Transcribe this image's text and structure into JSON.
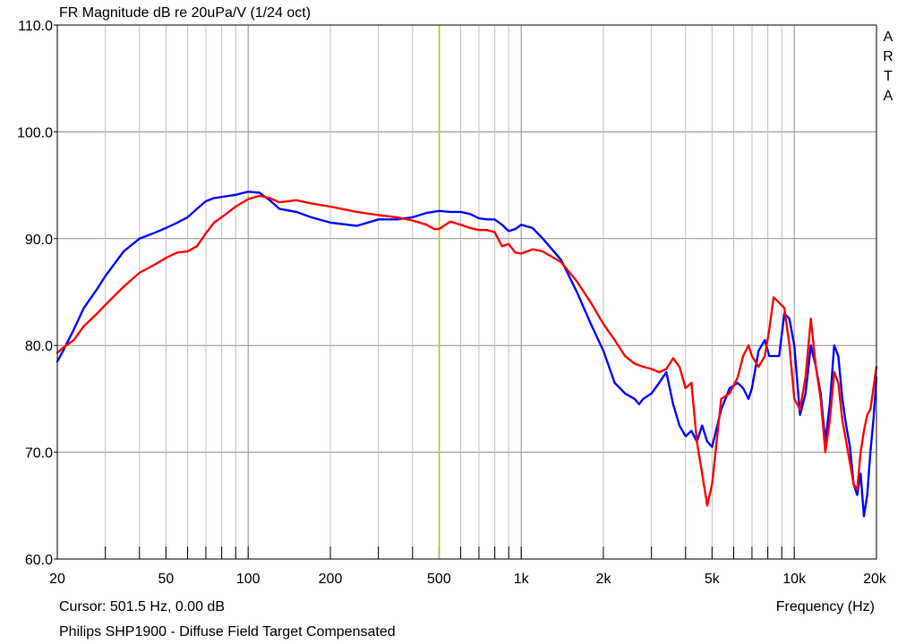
{
  "chart_data": {
    "type": "line",
    "title": "FR Magnitude dB re 20uPa/V (1/24 oct)",
    "xlabel": "Frequency (Hz)",
    "ylabel": "",
    "xscale": "log",
    "xlim": [
      20,
      20000
    ],
    "ylim": [
      60,
      110
    ],
    "grid": true,
    "y_ticks": [
      {
        "value": 60,
        "label": "60.0"
      },
      {
        "value": 70,
        "label": "70.0"
      },
      {
        "value": 80,
        "label": "80.0"
      },
      {
        "value": 90,
        "label": "90.0"
      },
      {
        "value": 100,
        "label": "100.0"
      },
      {
        "value": 110,
        "label": "110.0"
      }
    ],
    "x_ticks": [
      {
        "value": 20,
        "label": "20"
      },
      {
        "value": 50,
        "label": "50"
      },
      {
        "value": 100,
        "label": "100"
      },
      {
        "value": 200,
        "label": "200"
      },
      {
        "value": 500,
        "label": "500"
      },
      {
        "value": 1000,
        "label": "1k"
      },
      {
        "value": 2000,
        "label": "2k"
      },
      {
        "value": 5000,
        "label": "5k"
      },
      {
        "value": 10000,
        "label": "10k"
      },
      {
        "value": 20000,
        "label": "20k"
      }
    ],
    "cursor": {
      "frequency": 501.5,
      "color": "#c8c800"
    },
    "cursor_label": "Cursor: 501.5 Hz, 0.00 dB",
    "watermark": "ARTA",
    "caption": "Philips SHP1900 - Diffuse Field Target Compensated",
    "series": [
      {
        "color": "#0000ff",
        "x": [
          20,
          21,
          23,
          25,
          28,
          30,
          35,
          40,
          45,
          50,
          55,
          60,
          65,
          70,
          75,
          80,
          90,
          100,
          110,
          120,
          130,
          150,
          170,
          200,
          250,
          300,
          350,
          400,
          450,
          500,
          550,
          600,
          650,
          700,
          750,
          800,
          850,
          900,
          950,
          1000,
          1100,
          1200,
          1400,
          1600,
          1800,
          2000,
          2200,
          2400,
          2600,
          2700,
          2800,
          3000,
          3200,
          3400,
          3600,
          3800,
          4000,
          4200,
          4400,
          4600,
          4800,
          5000,
          5400,
          5800,
          6200,
          6500,
          6800,
          7000,
          7400,
          7800,
          8100,
          8400,
          8800,
          9200,
          9600,
          10000,
          10500,
          11000,
          11500,
          12000,
          12500,
          13000,
          13500,
          14000,
          14500,
          15000,
          15500,
          16000,
          16500,
          17000,
          17500,
          18000,
          18500,
          19000,
          19500,
          20000
        ],
        "y": [
          78.5,
          79.5,
          81.5,
          83.5,
          85.3,
          86.5,
          88.8,
          90.0,
          90.5,
          91.0,
          91.5,
          92.0,
          92.8,
          93.5,
          93.8,
          93.9,
          94.1,
          94.4,
          94.3,
          93.6,
          92.8,
          92.5,
          92.0,
          91.5,
          91.2,
          91.8,
          91.8,
          92.0,
          92.4,
          92.6,
          92.5,
          92.5,
          92.3,
          91.9,
          91.8,
          91.8,
          91.3,
          90.7,
          90.9,
          91.3,
          91.0,
          90.0,
          88.0,
          85.0,
          82.0,
          79.5,
          76.5,
          75.5,
          75.0,
          74.5,
          75.0,
          75.5,
          76.5,
          77.5,
          74.5,
          72.5,
          71.5,
          72.0,
          71.0,
          72.5,
          71.0,
          70.5,
          74.0,
          76.0,
          76.5,
          76.0,
          75.0,
          76.0,
          79.5,
          80.5,
          79.0,
          79.0,
          79.0,
          83.0,
          82.5,
          80.0,
          73.5,
          75.5,
          80.0,
          78.0,
          75.5,
          71.0,
          74.5,
          80.0,
          79.0,
          75.0,
          72.5,
          70.5,
          67.0,
          66.0,
          68.0,
          64.0,
          66.0,
          70.0,
          73.0,
          77.0
        ]
      },
      {
        "color": "#ff0000",
        "x": [
          20,
          21,
          23,
          25,
          28,
          30,
          35,
          40,
          45,
          50,
          55,
          60,
          65,
          70,
          75,
          80,
          90,
          100,
          110,
          120,
          130,
          150,
          170,
          200,
          250,
          300,
          350,
          400,
          450,
          480,
          500,
          550,
          600,
          650,
          700,
          750,
          800,
          850,
          900,
          950,
          1000,
          1100,
          1200,
          1400,
          1600,
          1800,
          2000,
          2200,
          2400,
          2600,
          2800,
          3000,
          3200,
          3400,
          3600,
          3800,
          4000,
          4200,
          4400,
          4600,
          4800,
          5000,
          5400,
          5800,
          6200,
          6500,
          6800,
          7000,
          7400,
          7800,
          8100,
          8400,
          8800,
          9200,
          9600,
          10000,
          10500,
          11000,
          11500,
          12000,
          12500,
          13000,
          13500,
          14000,
          14500,
          15000,
          15500,
          16000,
          16500,
          17000,
          17500,
          18000,
          18500,
          19000,
          19500,
          20000
        ],
        "y": [
          79.3,
          79.8,
          80.5,
          81.8,
          83.0,
          83.8,
          85.5,
          86.8,
          87.5,
          88.2,
          88.7,
          88.8,
          89.3,
          90.5,
          91.5,
          92.0,
          93.0,
          93.7,
          94.0,
          93.8,
          93.4,
          93.6,
          93.3,
          93.0,
          92.5,
          92.2,
          92.0,
          91.7,
          91.3,
          90.9,
          90.9,
          91.6,
          91.3,
          91.0,
          90.8,
          90.8,
          90.6,
          89.3,
          89.5,
          88.7,
          88.6,
          89.0,
          88.8,
          87.8,
          86.0,
          84.0,
          82.0,
          80.5,
          79.0,
          78.3,
          78.0,
          77.8,
          77.5,
          77.8,
          78.8,
          78.0,
          76.0,
          76.5,
          71.0,
          68.0,
          65.0,
          67.0,
          75.0,
          75.5,
          77.0,
          79.0,
          80.0,
          79.0,
          78.0,
          79.0,
          81.5,
          84.5,
          84.0,
          83.5,
          80.0,
          75.0,
          74.0,
          77.0,
          82.5,
          78.0,
          75.0,
          70.0,
          73.0,
          77.5,
          76.5,
          73.0,
          71.0,
          69.0,
          67.0,
          66.5,
          70.0,
          72.0,
          73.5,
          74.0,
          76.0,
          78.0
        ]
      }
    ]
  }
}
